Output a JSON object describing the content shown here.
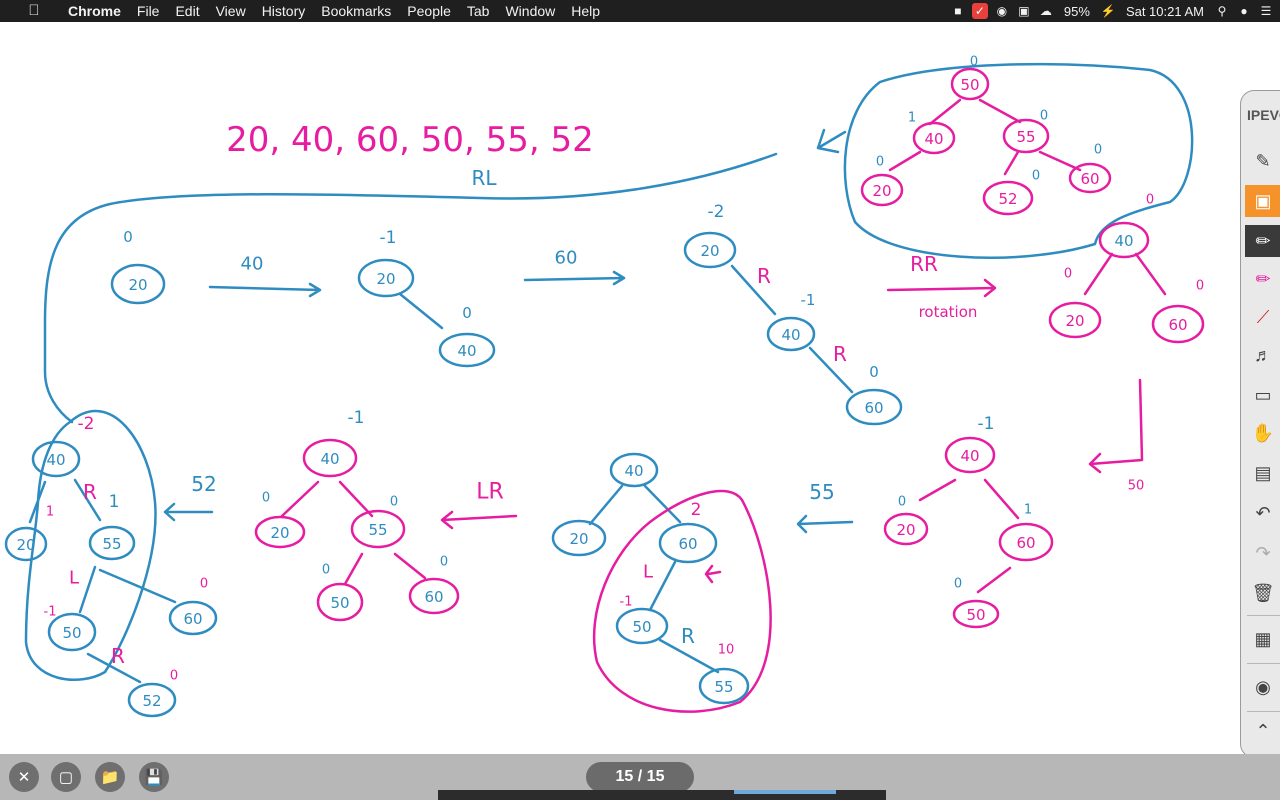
{
  "menubar": {
    "app_name": "Chrome",
    "items": [
      "File",
      "Edit",
      "View",
      "History",
      "Bookmarks",
      "People",
      "Tab",
      "Window",
      "Help"
    ],
    "battery": "95%",
    "clock": "Sat 10:21 AM"
  },
  "toolbar": {
    "brand": "IPEVO"
  },
  "bottombar": {
    "page_indicator": "15 / 15"
  },
  "board": {
    "sequence": "20,  40,  60,  50,  55,  52",
    "labels": {
      "rl": "RL",
      "rr": "RR",
      "rotation": "rotation",
      "ins40": "40",
      "ins60": "60",
      "ins50": "50",
      "ins55": "55",
      "ins52": "52",
      "lr": "LR",
      "r": "R",
      "l": "L"
    },
    "nodes": {
      "n20": "20",
      "n40": "40",
      "n60": "60",
      "n50": "50",
      "n55": "55",
      "n52": "52"
    },
    "balance": {
      "zero": "0",
      "one": "1",
      "m1": "-1",
      "m2": "-2",
      "two": "2",
      "ten": "10"
    }
  },
  "colors": {
    "blue_ink": "#2f8cc0",
    "pink_ink": "#e61da0",
    "menubar_bg": "#1f1f1f"
  }
}
